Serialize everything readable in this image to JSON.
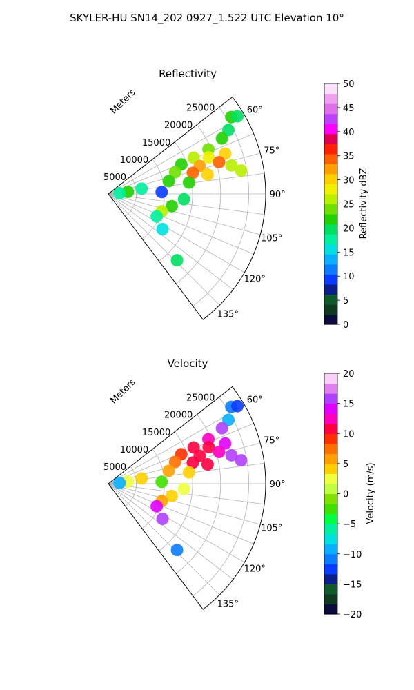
{
  "figure": {
    "suptitle": "SKYLER-HU  SN14_202  0927_1.522 UTC Elevation 10°"
  },
  "chart_data": [
    {
      "type": "heatmap",
      "subtype": "polar-sector-radar",
      "title": "Reflectivity",
      "radial_label": "Meters",
      "radial_ticks": [
        "5000",
        "10000",
        "15000",
        "20000",
        "25000"
      ],
      "radial_range": [
        0,
        28000
      ],
      "angle_ticks": [
        "60°",
        "75°",
        "90°",
        "105°",
        "120°",
        "135°"
      ],
      "angle_range_deg": [
        52,
        143
      ],
      "grid": true,
      "colorbar": {
        "label": "Reflectivity dBZ",
        "range": [
          0,
          50
        ],
        "ticks": [
          "0",
          "5",
          "10",
          "15",
          "20",
          "25",
          "30",
          "35",
          "40",
          "45",
          "50"
        ],
        "colormap": "NWS reflectivity"
      },
      "echoes": [
        {
          "az": 58,
          "r": 25800,
          "value": 21
        },
        {
          "az": 59,
          "r": 26800,
          "value": 19
        },
        {
          "az": 62,
          "r": 24200,
          "value": 20
        },
        {
          "az": 64,
          "r": 22500,
          "value": 22
        },
        {
          "az": 66,
          "r": 19500,
          "value": 24
        },
        {
          "az": 67,
          "r": 16500,
          "value": 27
        },
        {
          "az": 68,
          "r": 14000,
          "value": 22
        },
        {
          "az": 70,
          "r": 19000,
          "value": 28
        },
        {
          "az": 71,
          "r": 22000,
          "value": 30
        },
        {
          "az": 72,
          "r": 12500,
          "value": 24
        },
        {
          "az": 73,
          "r": 17000,
          "value": 33
        },
        {
          "az": 74,
          "r": 20500,
          "value": 35
        },
        {
          "az": 76,
          "r": 15500,
          "value": 34
        },
        {
          "az": 77,
          "r": 22500,
          "value": 27
        },
        {
          "az": 78,
          "r": 11000,
          "value": 22
        },
        {
          "az": 79,
          "r": 18000,
          "value": 30
        },
        {
          "az": 80,
          "r": 24000,
          "value": 25
        },
        {
          "az": 81,
          "r": 6000,
          "value": 18
        },
        {
          "az": 82,
          "r": 14500,
          "value": 21
        },
        {
          "az": 84,
          "r": 3500,
          "value": 22
        },
        {
          "az": 86,
          "r": 2000,
          "value": 17
        },
        {
          "az": 88,
          "r": 9500,
          "value": 10
        },
        {
          "az": 94,
          "r": 13500,
          "value": 20
        },
        {
          "az": 101,
          "r": 11500,
          "value": 22
        },
        {
          "az": 108,
          "r": 10000,
          "value": 25
        },
        {
          "az": 115,
          "r": 9500,
          "value": 17
        },
        {
          "az": 123,
          "r": 11500,
          "value": 16
        },
        {
          "az": 134,
          "r": 17000,
          "value": 20
        }
      ]
    },
    {
      "type": "heatmap",
      "subtype": "polar-sector-radar",
      "title": "Velocity",
      "radial_label": "Meters",
      "radial_ticks": [
        "5000",
        "10000",
        "15000",
        "20000",
        "25000"
      ],
      "radial_range": [
        0,
        28000
      ],
      "angle_ticks": [
        "60°",
        "75°",
        "90°",
        "105°",
        "120°",
        "135°"
      ],
      "angle_range_deg": [
        52,
        143
      ],
      "grid": true,
      "colorbar": {
        "label": "Velocity (m/s)",
        "range": [
          -20,
          20
        ],
        "ticks": [
          "−20",
          "−15",
          "−10",
          "−5",
          "0",
          "5",
          "10",
          "15",
          "20"
        ],
        "colormap": "NWS velocity"
      },
      "echoes": [
        {
          "az": 58,
          "r": 25800,
          "value": -11
        },
        {
          "az": 59,
          "r": 26800,
          "value": -13
        },
        {
          "az": 62,
          "r": 24200,
          "value": -10
        },
        {
          "az": 64,
          "r": 22500,
          "value": 16
        },
        {
          "az": 66,
          "r": 19500,
          "value": 13
        },
        {
          "az": 67,
          "r": 16500,
          "value": 10
        },
        {
          "az": 68,
          "r": 14000,
          "value": 9
        },
        {
          "az": 70,
          "r": 19000,
          "value": 11
        },
        {
          "az": 71,
          "r": 22000,
          "value": 14
        },
        {
          "az": 72,
          "r": 12500,
          "value": 8
        },
        {
          "az": 73,
          "r": 17000,
          "value": 10
        },
        {
          "az": 74,
          "r": 20500,
          "value": 12
        },
        {
          "az": 76,
          "r": 15500,
          "value": 10
        },
        {
          "az": 77,
          "r": 22500,
          "value": 15
        },
        {
          "az": 78,
          "r": 11000,
          "value": 6
        },
        {
          "az": 79,
          "r": 18000,
          "value": 11
        },
        {
          "az": 80,
          "r": 24000,
          "value": 15
        },
        {
          "az": 81,
          "r": 6000,
          "value": 4
        },
        {
          "az": 82,
          "r": 14500,
          "value": 4
        },
        {
          "az": 84,
          "r": 3500,
          "value": 3
        },
        {
          "az": 86,
          "r": 2000,
          "value": -10
        },
        {
          "az": 88,
          "r": 9500,
          "value": -3
        },
        {
          "az": 94,
          "r": 13500,
          "value": 3
        },
        {
          "az": 101,
          "r": 11500,
          "value": 4
        },
        {
          "az": 108,
          "r": 10000,
          "value": 5
        },
        {
          "az": 115,
          "r": 9500,
          "value": 14
        },
        {
          "az": 123,
          "r": 11500,
          "value": 15
        },
        {
          "az": 134,
          "r": 17000,
          "value": -11
        }
      ]
    }
  ]
}
